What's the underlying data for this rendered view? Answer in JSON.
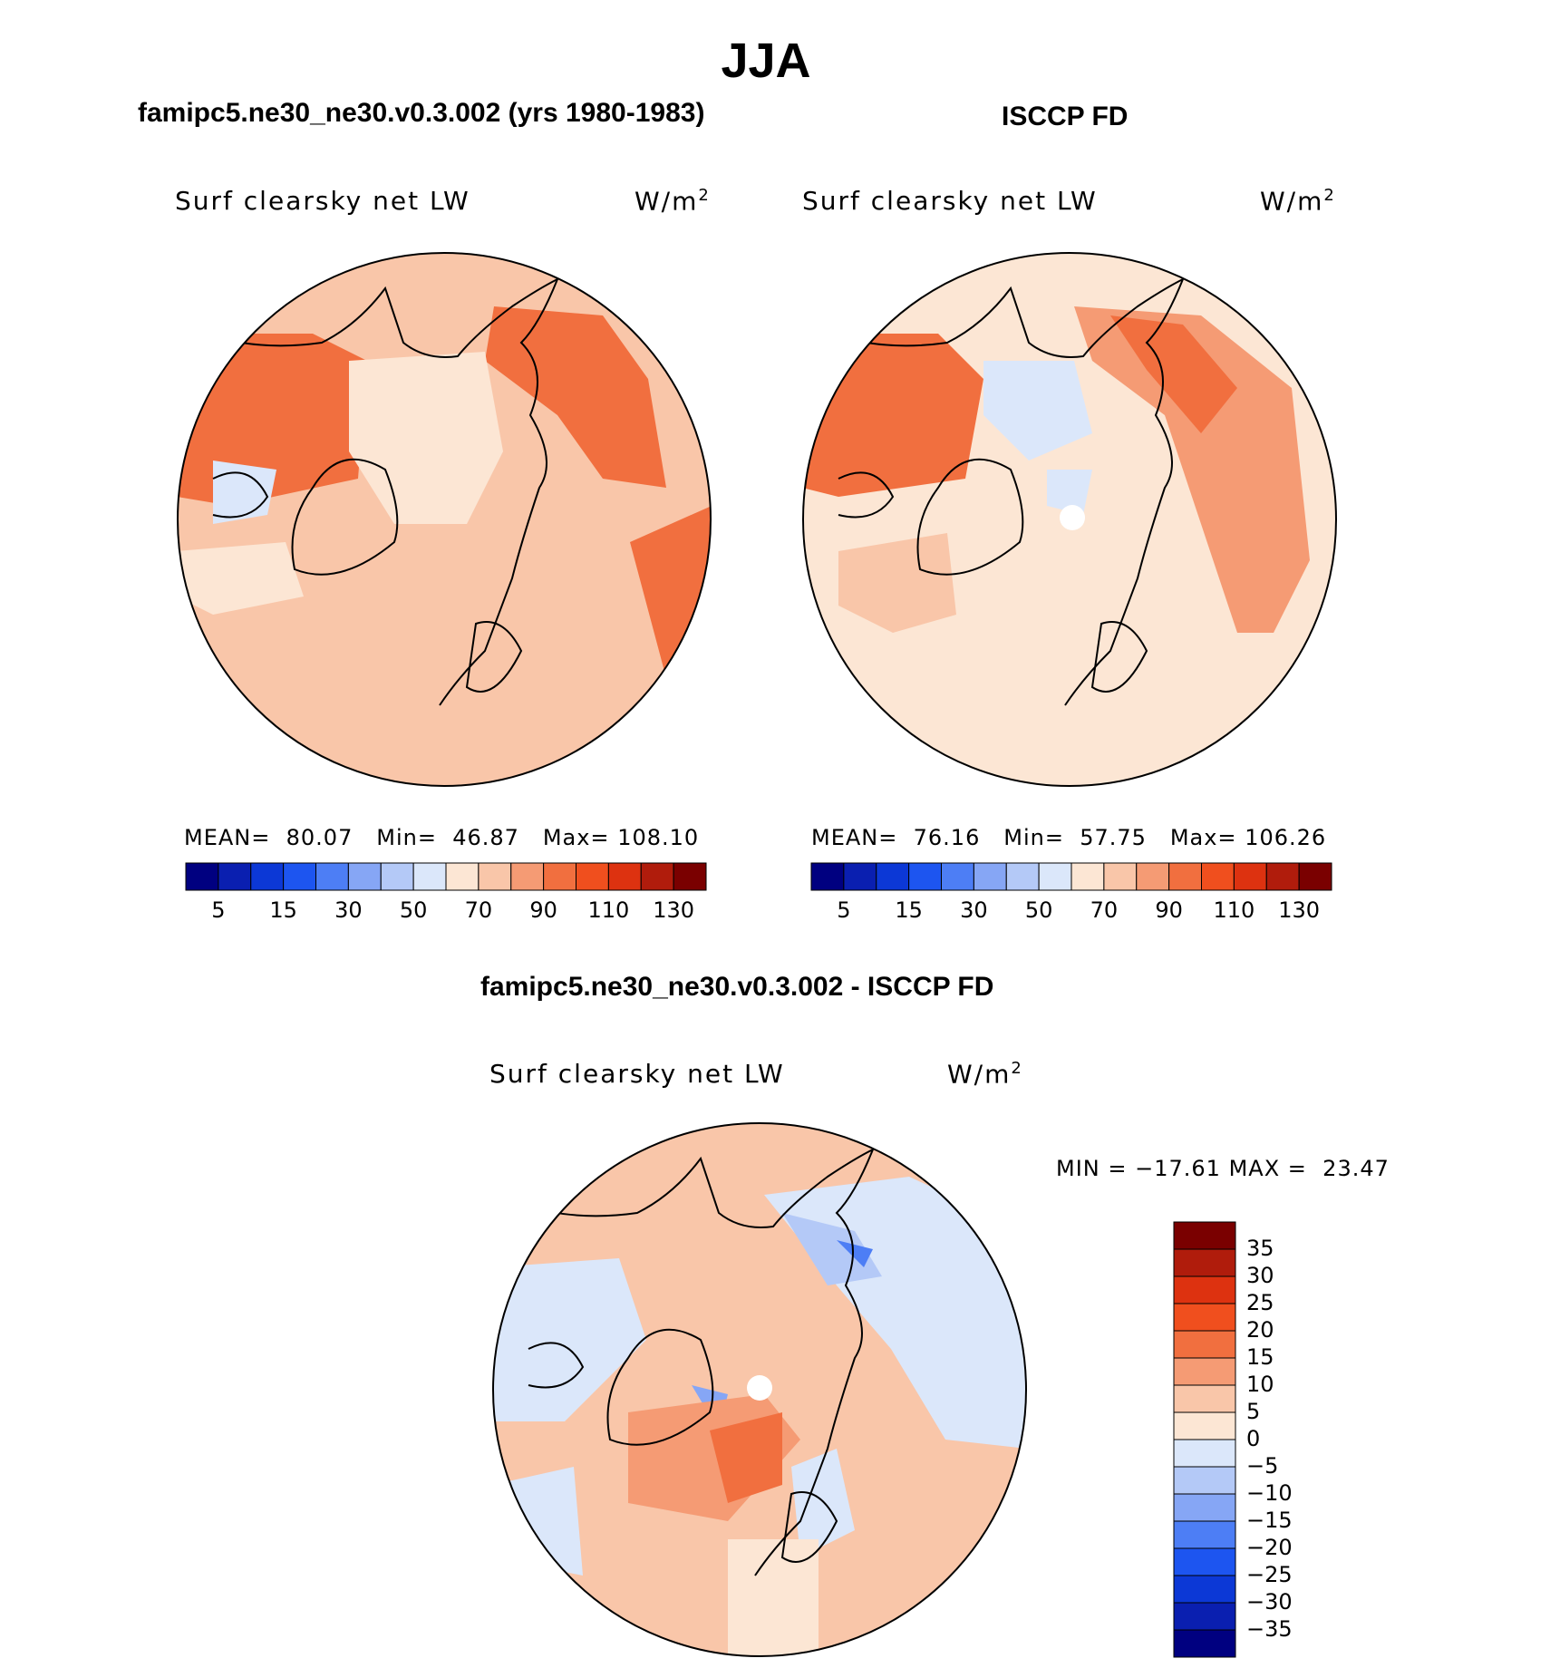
{
  "title": "JJA",
  "chart_data": [
    {
      "type": "heatmap",
      "projection": "north-polar-stereographic",
      "title": "famipc5.ne30_ne30.v0.3.002 (yrs 1980-1983)",
      "variable": "Surf clearsky net LW",
      "units_base": "W/m",
      "units_exp": "2",
      "stats": {
        "mean_label": "MEAN=",
        "mean": "80.07",
        "min_label": "Min=",
        "min": "46.87",
        "max_label": "Max=",
        "max": "108.10"
      },
      "colorbar": {
        "orientation": "horizontal",
        "colors": [
          "#000080",
          "#0a1fb0",
          "#0c38d6",
          "#1d55f0",
          "#4d7ef5",
          "#86a6f5",
          "#b4c9f7",
          "#dbe7fa",
          "#fce6d4",
          "#f9c6a9",
          "#f59b74",
          "#f16f3f",
          "#f04f1e",
          "#dd3210",
          "#b01c0c",
          "#7a0000"
        ],
        "tick_labels": [
          "5",
          "15",
          "30",
          "50",
          "70",
          "90",
          "110",
          "130"
        ]
      },
      "regions_description_free": true
    },
    {
      "type": "heatmap",
      "projection": "north-polar-stereographic",
      "title": "ISCCP FD",
      "variable": "Surf clearsky net LW",
      "units_base": "W/m",
      "units_exp": "2",
      "stats": {
        "mean_label": "MEAN=",
        "mean": "76.16",
        "min_label": "Min=",
        "min": "57.75",
        "max_label": "Max=",
        "max": "106.26"
      },
      "colorbar": {
        "orientation": "horizontal",
        "colors": [
          "#000080",
          "#0a1fb0",
          "#0c38d6",
          "#1d55f0",
          "#4d7ef5",
          "#86a6f5",
          "#b4c9f7",
          "#dbe7fa",
          "#fce6d4",
          "#f9c6a9",
          "#f59b74",
          "#f16f3f",
          "#f04f1e",
          "#dd3210",
          "#b01c0c",
          "#7a0000"
        ],
        "tick_labels": [
          "5",
          "15",
          "30",
          "50",
          "70",
          "90",
          "110",
          "130"
        ]
      }
    },
    {
      "type": "heatmap",
      "projection": "north-polar-stereographic",
      "title": "famipc5.ne30_ne30.v0.3.002 - ISCCP FD",
      "variable": "Surf clearsky net LW",
      "units_base": "W/m",
      "units_exp": "2",
      "stats": {
        "min_label": "MIN =",
        "min": "−17.61",
        "max_label": "MAX =",
        "max": "23.47"
      },
      "colorbar": {
        "orientation": "vertical",
        "colors_top_to_bottom": [
          "#7a0000",
          "#b01c0c",
          "#dd3210",
          "#f04f1e",
          "#f16f3f",
          "#f59b74",
          "#f9c6a9",
          "#fce6d4",
          "#dbe7fa",
          "#b4c9f7",
          "#86a6f5",
          "#4d7ef5",
          "#1d55f0",
          "#0c38d6",
          "#0a1fb0",
          "#000080"
        ],
        "tick_labels_top_to_bottom": [
          "35",
          "30",
          "25",
          "20",
          "15",
          "10",
          "5",
          "0",
          "−5",
          "−10",
          "−15",
          "−20",
          "−25",
          "−30",
          "−35"
        ]
      }
    }
  ]
}
